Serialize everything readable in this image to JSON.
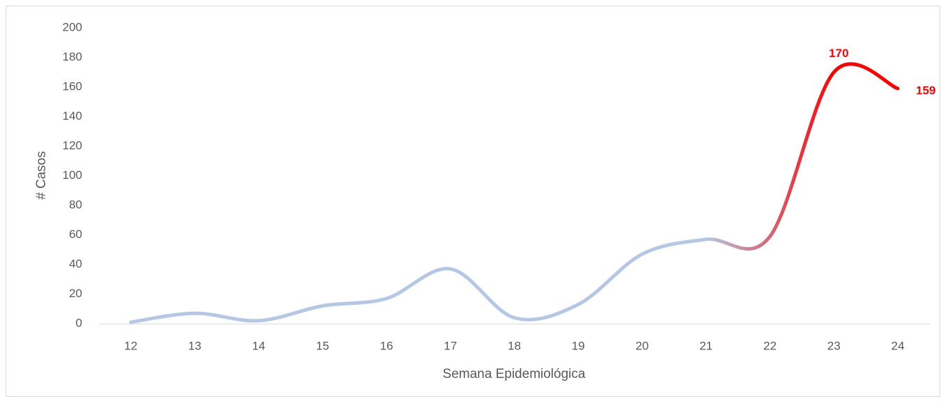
{
  "chart_data": {
    "type": "line",
    "x_label": "Semana Epidemiológica",
    "y_label": "# Casos",
    "categories": [
      "12",
      "13",
      "14",
      "15",
      "16",
      "17",
      "18",
      "19",
      "20",
      "21",
      "22",
      "23",
      "24"
    ],
    "values": [
      1,
      7,
      2,
      12,
      17,
      37,
      4,
      13,
      47,
      57,
      59,
      170,
      159
    ],
    "value_labels": [
      null,
      null,
      null,
      null,
      null,
      null,
      null,
      null,
      null,
      null,
      null,
      "170",
      "159"
    ],
    "color": "#b4c7e7",
    "highlight_color": "#ff0000",
    "smooth": true,
    "ylim": [
      0,
      200
    ],
    "yticks": [
      0,
      20,
      40,
      60,
      80,
      100,
      120,
      140,
      160,
      180,
      200
    ],
    "grid": false
  }
}
